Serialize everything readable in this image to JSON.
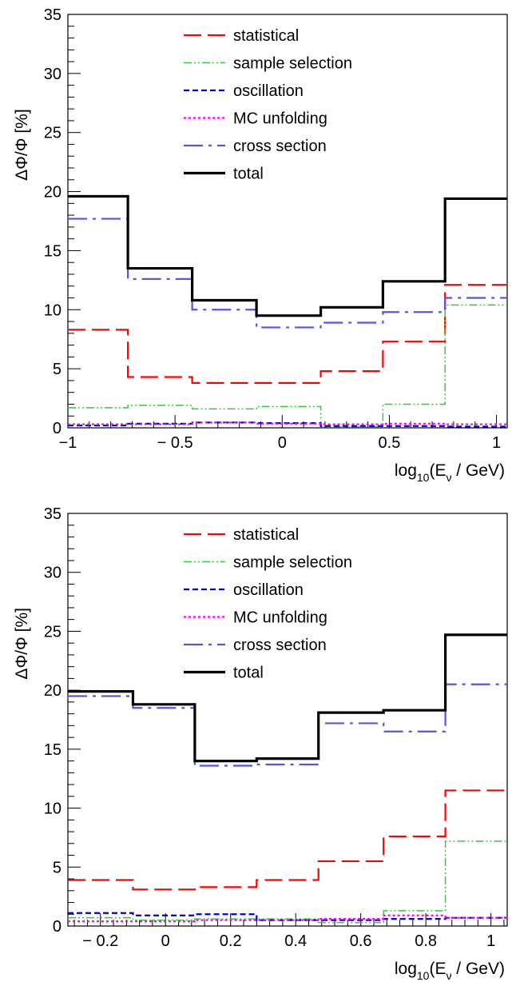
{
  "chart_data": [
    {
      "type": "line",
      "step": true,
      "xlabel_main": "log",
      "xlabel_sub": "10",
      "xlabel_rest": "(E",
      "xlabel_nu": "ν",
      "xlabel_end": " / GeV)",
      "ylabel": "ΔΦ/Φ [%]",
      "xlim": [
        -1.0,
        1.05
      ],
      "ylim": [
        0,
        35
      ],
      "xticks": [
        -1,
        -0.5,
        0,
        0.5,
        1
      ],
      "xtick_labels": [
        "−1",
        "− 0.5",
        "0",
        "0.5",
        "1"
      ],
      "yticks": [
        0,
        5,
        10,
        15,
        20,
        25,
        30,
        35
      ],
      "ytick_labels": [
        "0",
        "5",
        "10",
        "15",
        "20",
        "25",
        "30",
        "35"
      ],
      "bin_edges": [
        -1.0,
        -0.72,
        -0.42,
        -0.12,
        0.18,
        0.47,
        0.76,
        1.05
      ],
      "legend": [
        "statistical",
        "sample selection",
        "oscillation",
        "MC unfolding",
        "cross section",
        "total"
      ],
      "series": [
        {
          "name": "statistical",
          "color": "#ff0000",
          "values": [
            8.3,
            4.3,
            3.8,
            3.8,
            4.8,
            7.3,
            12.1
          ]
        },
        {
          "name": "sample selection",
          "color": "#33cc33",
          "values": [
            1.7,
            1.9,
            1.6,
            1.8,
            0.1,
            2.0,
            10.4
          ]
        },
        {
          "name": "oscillation",
          "color": "#0000cc",
          "values": [
            0.2,
            0.35,
            0.45,
            0.4,
            0.15,
            0.15,
            0.1
          ]
        },
        {
          "name": "MC unfolding",
          "color": "#ff00ff",
          "values": [
            0.3,
            0.3,
            0.45,
            0.35,
            0.3,
            0.35,
            0.3
          ]
        },
        {
          "name": "cross section",
          "color": "#5555dd",
          "values": [
            17.7,
            12.6,
            10.0,
            8.5,
            8.9,
            9.8,
            11.0
          ]
        },
        {
          "name": "total",
          "color": "#000000",
          "values": [
            19.6,
            13.5,
            10.8,
            9.5,
            10.2,
            12.4,
            19.4
          ]
        }
      ]
    },
    {
      "type": "line",
      "step": true,
      "xlabel_main": "log",
      "xlabel_sub": "10",
      "xlabel_rest": "(E",
      "xlabel_nu": "ν",
      "xlabel_end": " / GeV)",
      "ylabel": "ΔΦ/Φ [%]",
      "xlim": [
        -0.3,
        1.05
      ],
      "ylim": [
        0,
        35
      ],
      "xticks": [
        -0.2,
        0,
        0.2,
        0.4,
        0.6,
        0.8,
        1
      ],
      "xtick_labels": [
        "− 0.2",
        "0",
        "0.2",
        "0.4",
        "0.6",
        "0.8",
        "1"
      ],
      "yticks": [
        0,
        5,
        10,
        15,
        20,
        25,
        30,
        35
      ],
      "ytick_labels": [
        "0",
        "5",
        "10",
        "15",
        "20",
        "25",
        "30",
        "35"
      ],
      "bin_edges": [
        -0.3,
        -0.1,
        0.09,
        0.28,
        0.47,
        0.67,
        0.86,
        1.05
      ],
      "legend": [
        "statistical",
        "sample selection",
        "oscillation",
        "MC unfolding",
        "cross section",
        "total"
      ],
      "series": [
        {
          "name": "statistical",
          "color": "#ff0000",
          "values": [
            3.9,
            3.1,
            3.3,
            3.9,
            5.5,
            7.6,
            11.5
          ]
        },
        {
          "name": "sample selection",
          "color": "#33cc33",
          "values": [
            0.7,
            0.5,
            0.6,
            0.6,
            0.3,
            1.3,
            7.2
          ]
        },
        {
          "name": "oscillation",
          "color": "#0000cc",
          "values": [
            1.1,
            0.9,
            1.0,
            0.5,
            0.5,
            0.6,
            0.7
          ]
        },
        {
          "name": "MC unfolding",
          "color": "#ff00ff",
          "values": [
            0.4,
            0.4,
            0.5,
            0.5,
            0.6,
            0.9,
            0.7
          ]
        },
        {
          "name": "cross section",
          "color": "#5555dd",
          "values": [
            19.5,
            18.5,
            13.6,
            13.7,
            17.2,
            16.5,
            20.5
          ]
        },
        {
          "name": "total",
          "color": "#000000",
          "values": [
            19.9,
            18.8,
            14.0,
            14.2,
            18.1,
            18.3,
            24.7
          ]
        }
      ]
    }
  ]
}
